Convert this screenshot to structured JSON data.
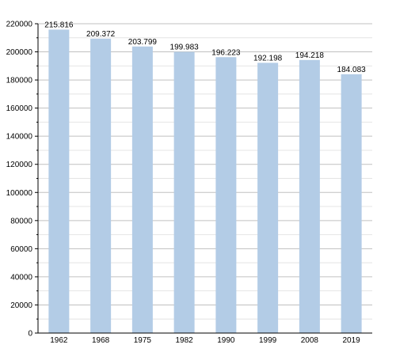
{
  "chart_data": {
    "type": "bar",
    "categories": [
      "1962",
      "1968",
      "1975",
      "1982",
      "1990",
      "1999",
      "2008",
      "2019"
    ],
    "values": [
      215816,
      209372,
      203799,
      199983,
      196223,
      192198,
      194218,
      184083
    ],
    "data_labels": [
      "215.816",
      "209.372",
      "203.799",
      "199.983",
      "196.223",
      "192.198",
      "194.218",
      "184.083"
    ],
    "y_ticks": [
      "0",
      "20000",
      "40000",
      "60000",
      "80000",
      "100000",
      "120000",
      "140000",
      "160000",
      "180000",
      "200000",
      "220000"
    ],
    "ylim": [
      0,
      220000
    ],
    "y_major_step": 20000,
    "y_minor_step": 10000,
    "grid": true,
    "bar_color": "#b3cce6",
    "grid_color": "#c0c0c0",
    "minor_grid_color": "#e4e4e4",
    "axis_color": "#000000",
    "title": "",
    "xlabel": "",
    "ylabel": ""
  }
}
